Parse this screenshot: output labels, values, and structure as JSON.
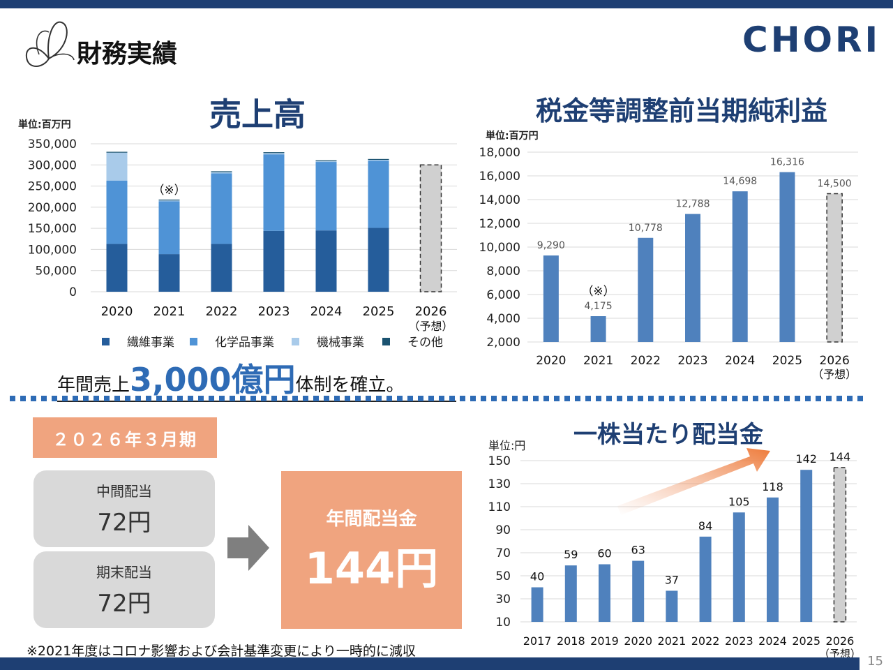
{
  "header": {
    "title": "財務実績",
    "brand": "CHORI",
    "page_number": "15"
  },
  "sales": {
    "title": "売上高",
    "unit": "単位:百万円",
    "note_mark": "（※）",
    "yticks": [
      "350,000",
      "300,000",
      "250,000",
      "200,000",
      "150,000",
      "100,000",
      "50,000",
      "0"
    ],
    "legend": [
      "繊維事業",
      "化学品事業",
      "機械事業",
      "その他"
    ],
    "forecast_label": "（予想）"
  },
  "profit": {
    "title": "税金等調整前当期純利益",
    "unit": "単位:百万円",
    "note_mark": "（※）",
    "yticks": [
      "18,000",
      "16,000",
      "14,000",
      "12,000",
      "10,000",
      "8,000",
      "6,000",
      "4,000",
      "2,000"
    ],
    "value_labels": [
      "9,290",
      "4,175",
      "10,778",
      "12,788",
      "14,698",
      "16,316",
      "14,500"
    ],
    "forecast_label": "（予想）"
  },
  "dividend": {
    "title": "一株当たり配当金",
    "unit": "単位:円",
    "yticks": [
      "150",
      "130",
      "110",
      "90",
      "70",
      "50",
      "30",
      "10"
    ],
    "forecast_label": "（予想）"
  },
  "slogan": {
    "pre": "年間売上",
    "big": "3,000億円",
    "post": "体制を確立。"
  },
  "summary": {
    "period": "２０２６年３月期",
    "interim_label": "中間配当",
    "interim_value": "72円",
    "yearend_label": "期末配当",
    "yearend_value": "72円",
    "annual_label": "年間配当金",
    "annual_value": "144円"
  },
  "footnote": "※2021年度はコロナ影響および会計基準変更により一時的に減収",
  "colors": {
    "navy": "#1e3f73",
    "textile": "#255d9b",
    "chemical": "#4f93d6",
    "machinery": "#a9cbea",
    "other": "#1a5270",
    "bar": "#4f81bd",
    "forecast": "#d0d0d0",
    "accent": "#f0a47f"
  },
  "chart_data": [
    {
      "type": "bar",
      "stacked": true,
      "title": "売上高",
      "categories": [
        "2020",
        "2021",
        "2022",
        "2023",
        "2024",
        "2025",
        "2026"
      ],
      "series": [
        {
          "name": "繊維事業",
          "values": [
            113000,
            89000,
            113000,
            144000,
            145000,
            151000,
            null
          ]
        },
        {
          "name": "化学品事業",
          "values": [
            150000,
            125000,
            167000,
            181000,
            162000,
            159000,
            null
          ]
        },
        {
          "name": "機械事業",
          "values": [
            66000,
            2000,
            3000,
            3000,
            2000,
            2000,
            null
          ]
        },
        {
          "name": "その他",
          "values": [
            2000,
            2000,
            2000,
            2000,
            2000,
            2000,
            null
          ]
        }
      ],
      "forecast_total": 300000,
      "ylim": [
        0,
        350000
      ]
    },
    {
      "type": "bar",
      "title": "税金等調整前当期純利益",
      "categories": [
        "2020",
        "2021",
        "2022",
        "2023",
        "2024",
        "2025",
        "2026"
      ],
      "values": [
        9290,
        4175,
        10778,
        12788,
        14698,
        16316,
        14500
      ],
      "ylim": [
        2000,
        18000
      ]
    },
    {
      "type": "bar",
      "title": "一株当たり配当金",
      "categories": [
        "2017",
        "2018",
        "2019",
        "2020",
        "2021",
        "2022",
        "2023",
        "2024",
        "2025",
        "2026"
      ],
      "values": [
        40,
        59,
        60,
        63,
        37,
        84,
        105,
        118,
        142,
        144
      ],
      "ylim": [
        10,
        150
      ]
    }
  ]
}
